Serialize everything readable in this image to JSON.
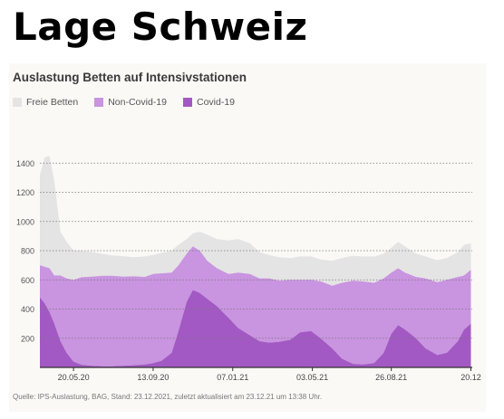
{
  "page_title": "Lage Schweiz",
  "source_note": "Quelle: IPS-Auslastung, BAG, Stand: 23.12.2021, zuletzt aktualisiert am 23.12.21 um 13:38 Uhr.",
  "colors": {
    "free": "#e4e4e4",
    "noncovid": "#c994e0",
    "covid": "#a259c3",
    "grid": "#7a7a7a",
    "axis": "#333333"
  },
  "chart_data": {
    "type": "area",
    "title": "Auslastung Betten auf Intensivstationen",
    "stacked": true,
    "legend_position": "top-left",
    "ylim": [
      0,
      1600
    ],
    "yticks": [
      200,
      400,
      600,
      800,
      1000,
      1200,
      1400
    ],
    "xlim": [
      "2020-04-01",
      "2021-12-22"
    ],
    "xticks": [
      {
        "date": "2020-05-20",
        "label": "20.05.20"
      },
      {
        "date": "2020-09-13",
        "label": "13.09.20"
      },
      {
        "date": "2021-01-07",
        "label": "07.01.21"
      },
      {
        "date": "2021-05-03",
        "label": "03.05.21"
      },
      {
        "date": "2021-08-26",
        "label": "26.08.21"
      },
      {
        "date": "2021-12-20",
        "label": "20.12"
      }
    ],
    "grid": true,
    "x": [
      "2020-04-01",
      "2020-04-08",
      "2020-04-15",
      "2020-04-22",
      "2020-05-01",
      "2020-05-10",
      "2020-05-20",
      "2020-06-01",
      "2020-06-15",
      "2020-07-01",
      "2020-07-15",
      "2020-08-01",
      "2020-08-15",
      "2020-09-01",
      "2020-09-13",
      "2020-09-25",
      "2020-10-10",
      "2020-10-20",
      "2020-11-01",
      "2020-11-10",
      "2020-11-20",
      "2020-12-01",
      "2020-12-15",
      "2021-01-01",
      "2021-01-15",
      "2021-02-01",
      "2021-02-15",
      "2021-03-01",
      "2021-03-15",
      "2021-04-01",
      "2021-04-15",
      "2021-05-01",
      "2021-05-15",
      "2021-06-01",
      "2021-06-15",
      "2021-07-01",
      "2021-07-15",
      "2021-08-01",
      "2021-08-15",
      "2021-08-26",
      "2021-09-05",
      "2021-09-15",
      "2021-10-01",
      "2021-10-15",
      "2021-11-01",
      "2021-11-15",
      "2021-12-01",
      "2021-12-10",
      "2021-12-20"
    ],
    "series": [
      {
        "name": "Covid-19",
        "values": [
          480,
          440,
          380,
          300,
          180,
          100,
          40,
          18,
          12,
          8,
          8,
          12,
          15,
          20,
          30,
          45,
          100,
          250,
          450,
          530,
          510,
          470,
          420,
          340,
          270,
          220,
          180,
          170,
          175,
          190,
          240,
          250,
          200,
          130,
          60,
          25,
          20,
          30,
          100,
          230,
          290,
          260,
          200,
          130,
          85,
          100,
          180,
          260,
          300
        ]
      },
      {
        "name": "Non-Covid-19",
        "values": [
          220,
          250,
          300,
          330,
          450,
          510,
          560,
          600,
          610,
          620,
          620,
          610,
          610,
          600,
          610,
          600,
          550,
          450,
          330,
          300,
          290,
          260,
          260,
          300,
          380,
          420,
          430,
          440,
          420,
          410,
          360,
          350,
          390,
          430,
          520,
          570,
          570,
          550,
          510,
          420,
          390,
          390,
          420,
          480,
          500,
          500,
          440,
          370,
          370
        ]
      },
      {
        "name": "Freie Betten",
        "values": [
          620,
          750,
          770,
          650,
          300,
          250,
          200,
          180,
          170,
          150,
          140,
          140,
          130,
          140,
          130,
          140,
          150,
          140,
          100,
          90,
          130,
          180,
          200,
          230,
          230,
          210,
          180,
          160,
          160,
          150,
          160,
          160,
          150,
          170,
          170,
          170,
          170,
          180,
          170,
          170,
          180,
          180,
          160,
          150,
          150,
          150,
          170,
          210,
          180
        ]
      }
    ]
  }
}
